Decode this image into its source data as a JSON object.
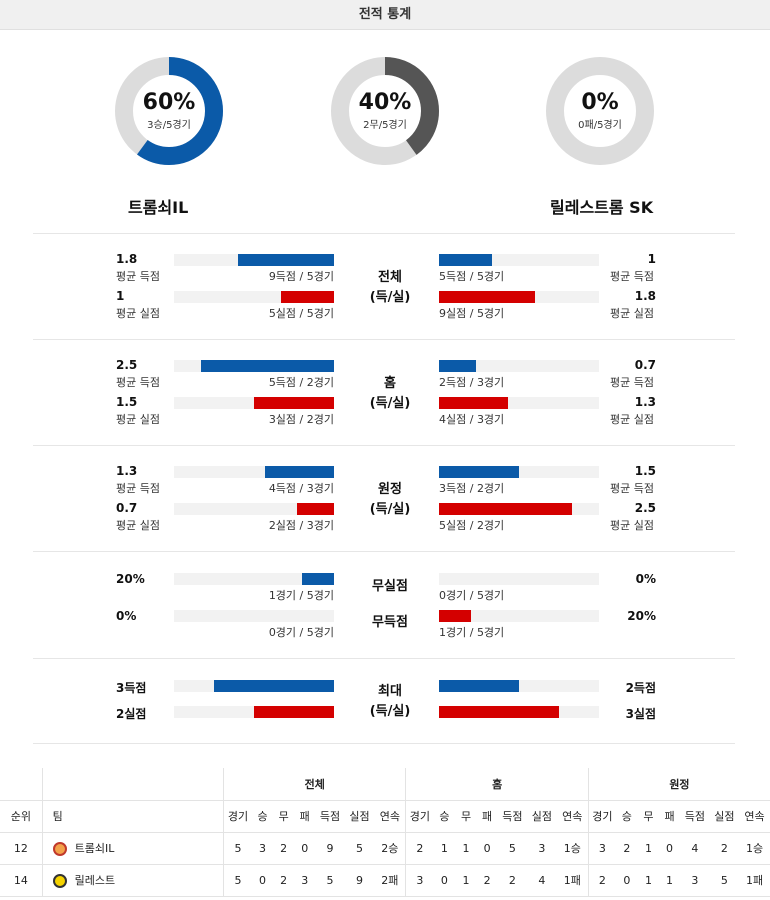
{
  "header": {
    "title": "전적 통계"
  },
  "donuts": [
    {
      "pct": "60%",
      "sub": "3승/5경기",
      "value": 0.6,
      "color": "#0b5aa8"
    },
    {
      "pct": "40%",
      "sub": "2무/5경기",
      "value": 0.4,
      "color": "#555555"
    },
    {
      "pct": "0%",
      "sub": "0패/5경기",
      "value": 0.0,
      "color": "#0b5aa8"
    }
  ],
  "teams": {
    "home": "트롬쇠IL",
    "away": "릴레스트롬 SK"
  },
  "sections": [
    {
      "center": [
        "전체",
        "(득/실)"
      ],
      "rows": [
        {
          "lval": "1.8",
          "llbl": "평균 득점",
          "lcap": "9득점 / 5경기",
          "lfrac": 0.6,
          "rval": "1",
          "rlbl": "평균 득점",
          "rcap": "5득점 / 5경기",
          "rfrac": 0.33,
          "color": "blue"
        },
        {
          "lval": "1",
          "llbl": "평균 실점",
          "lcap": "5실점 / 5경기",
          "lfrac": 0.33,
          "rval": "1.8",
          "rlbl": "평균 실점",
          "rcap": "9실점 / 5경기",
          "rfrac": 0.6,
          "color": "red"
        }
      ]
    },
    {
      "center": [
        "홈",
        "(득/실)"
      ],
      "rows": [
        {
          "lval": "2.5",
          "llbl": "평균 득점",
          "lcap": "5득점 / 2경기",
          "lfrac": 0.83,
          "rval": "0.7",
          "rlbl": "평균 득점",
          "rcap": "2득점 / 3경기",
          "rfrac": 0.23,
          "color": "blue"
        },
        {
          "lval": "1.5",
          "llbl": "평균 실점",
          "lcap": "3실점 / 2경기",
          "lfrac": 0.5,
          "rval": "1.3",
          "rlbl": "평균 실점",
          "rcap": "4실점 / 3경기",
          "rfrac": 0.43,
          "color": "red"
        }
      ]
    },
    {
      "center": [
        "원정",
        "(득/실)"
      ],
      "rows": [
        {
          "lval": "1.3",
          "llbl": "평균 득점",
          "lcap": "4득점 / 3경기",
          "lfrac": 0.43,
          "rval": "1.5",
          "rlbl": "평균 득점",
          "rcap": "3득점 / 2경기",
          "rfrac": 0.5,
          "color": "blue"
        },
        {
          "lval": "0.7",
          "llbl": "평균 실점",
          "lcap": "2실점 / 3경기",
          "lfrac": 0.23,
          "rval": "2.5",
          "rlbl": "평균 실점",
          "rcap": "5실점 / 2경기",
          "rfrac": 0.83,
          "color": "red"
        }
      ]
    }
  ],
  "clean": {
    "rows": [
      {
        "center": "무실점",
        "lval": "20%",
        "lcap": "1경기 / 5경기",
        "lfrac": 0.2,
        "rval": "0%",
        "rcap": "0경기 / 5경기",
        "rfrac": 0.0,
        "color": "blue"
      },
      {
        "center": "무득점",
        "lval": "0%",
        "lcap": "0경기 / 5경기",
        "lfrac": 0.0,
        "rval": "20%",
        "rcap": "1경기 / 5경기",
        "rfrac": 0.2,
        "color": "red"
      }
    ]
  },
  "max": {
    "center": [
      "최대",
      "(득/실)"
    ],
    "rows": [
      {
        "lval": "3득점",
        "lfrac": 0.75,
        "rval": "2득점",
        "rfrac": 0.5,
        "color": "blue"
      },
      {
        "lval": "2실점",
        "lfrac": 0.5,
        "rval": "3실점",
        "rfrac": 0.75,
        "color": "red"
      }
    ]
  },
  "table": {
    "groups": [
      "전체",
      "홈",
      "원정"
    ],
    "rank_header": "순위",
    "team_header": "팀",
    "cols": [
      "경기",
      "승",
      "무",
      "패",
      "득점",
      "실점",
      "연속"
    ],
    "rows": [
      {
        "rank": "12",
        "team": "트롬쇠IL",
        "total": [
          "5",
          "3",
          "2",
          "0",
          "9",
          "5",
          "2승"
        ],
        "home": [
          "2",
          "1",
          "1",
          "0",
          "5",
          "3",
          "1승"
        ],
        "away": [
          "3",
          "2",
          "1",
          "0",
          "4",
          "2",
          "1승"
        ]
      },
      {
        "rank": "14",
        "team": "릴레스트",
        "total": [
          "5",
          "0",
          "2",
          "3",
          "5",
          "9",
          "2패"
        ],
        "home": [
          "3",
          "0",
          "1",
          "2",
          "2",
          "4",
          "1패"
        ],
        "away": [
          "2",
          "0",
          "1",
          "1",
          "3",
          "5",
          "1패"
        ]
      }
    ]
  }
}
